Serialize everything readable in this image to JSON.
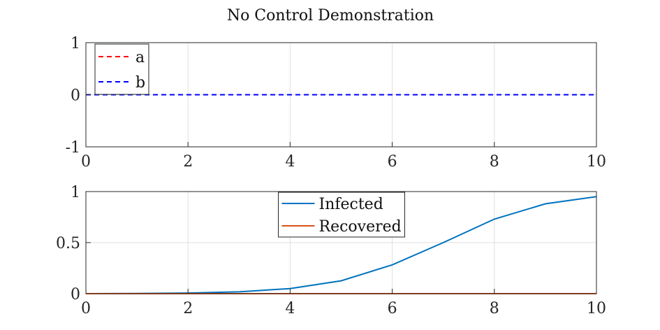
{
  "chart_data": [
    {
      "type": "line",
      "title": "No Control Demonstration",
      "xlabel": "",
      "ylabel": "",
      "xlim": [
        0,
        10
      ],
      "ylim": [
        -1,
        1
      ],
      "xticks": [
        0,
        2,
        4,
        6,
        8,
        10
      ],
      "yticks": [
        -1,
        0,
        1
      ],
      "grid": true,
      "legend_position": "top-left",
      "series": [
        {
          "name": "a",
          "color": "#ff0000",
          "style": "dashed",
          "x": [
            0,
            1,
            2,
            3,
            4,
            5,
            6,
            7,
            8,
            9,
            10
          ],
          "y": [
            0,
            0,
            0,
            0,
            0,
            0,
            0,
            0,
            0,
            0,
            0
          ]
        },
        {
          "name": "b",
          "color": "#0000ff",
          "style": "dashed",
          "x": [
            0,
            1,
            2,
            3,
            4,
            5,
            6,
            7,
            8,
            9,
            10
          ],
          "y": [
            0,
            0,
            0,
            0,
            0,
            0,
            0,
            0,
            0,
            0,
            0
          ]
        }
      ]
    },
    {
      "type": "line",
      "title": "",
      "xlabel": "",
      "ylabel": "",
      "xlim": [
        0,
        10
      ],
      "ylim": [
        0,
        1
      ],
      "xticks": [
        0,
        2,
        4,
        6,
        8,
        10
      ],
      "yticks": [
        0,
        0.5,
        1
      ],
      "grid": true,
      "legend_position": "top-center",
      "series": [
        {
          "name": "Infected",
          "color": "#0072bd",
          "style": "solid",
          "x": [
            0,
            1,
            2,
            3,
            4,
            5,
            6,
            7,
            8,
            9,
            10
          ],
          "y": [
            0.0,
            0.002,
            0.006,
            0.018,
            0.05,
            0.126,
            0.282,
            0.5,
            0.73,
            0.88,
            0.95
          ]
        },
        {
          "name": "Recovered",
          "color": "#d95319",
          "style": "solid",
          "x": [
            0,
            1,
            2,
            3,
            4,
            5,
            6,
            7,
            8,
            9,
            10
          ],
          "y": [
            0,
            0,
            0,
            0,
            0,
            0,
            0,
            0,
            0,
            0,
            0
          ]
        }
      ]
    }
  ]
}
